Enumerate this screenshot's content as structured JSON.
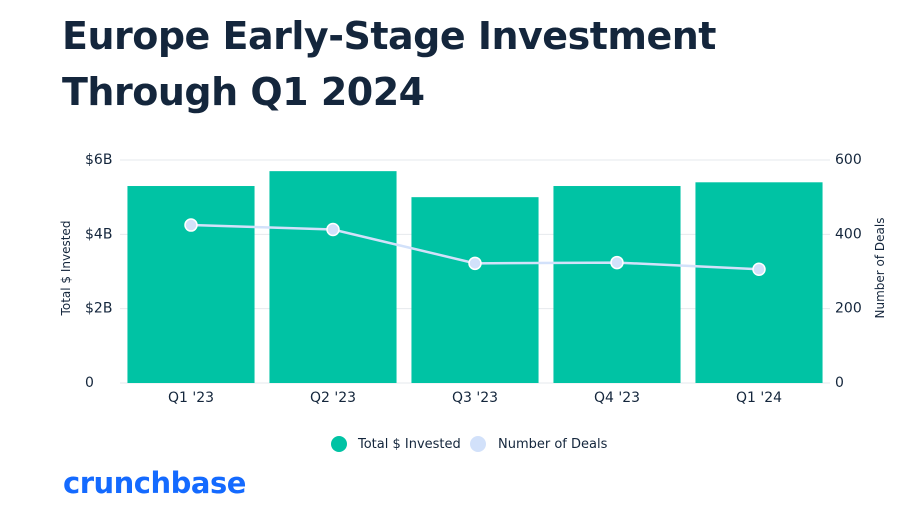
{
  "title": "Europe Early-Stage Investment Through Q1 2024",
  "brand": "crunchbase",
  "colors": {
    "bar": "#00c3a4",
    "line": "#d2e1fa",
    "text": "#14263c",
    "grid": "#e6e9ed",
    "brand": "#146aff"
  },
  "chart_data": {
    "type": "bar",
    "categories": [
      "Q1 '23",
      "Q2 '23",
      "Q3 '23",
      "Q4 '23",
      "Q1 '24"
    ],
    "series": [
      {
        "name": "Total $ Invested",
        "type": "bar",
        "axis": "left",
        "values": [
          5.3,
          5.7,
          5.0,
          5.3,
          5.4
        ]
      },
      {
        "name": "Number of Deals",
        "type": "line",
        "axis": "right",
        "values": [
          425,
          413,
          322,
          324,
          306
        ]
      }
    ],
    "ylabel": "Total $ Invested",
    "y2label": "Number of Deals",
    "ylim": [
      0,
      6
    ],
    "y2lim": [
      0,
      600
    ],
    "yticks": [
      "0",
      "$2B",
      "$4B",
      "$6B"
    ],
    "y2ticks": [
      "0",
      "200",
      "400",
      "600"
    ],
    "legend": "bottom-center",
    "grid": true
  }
}
